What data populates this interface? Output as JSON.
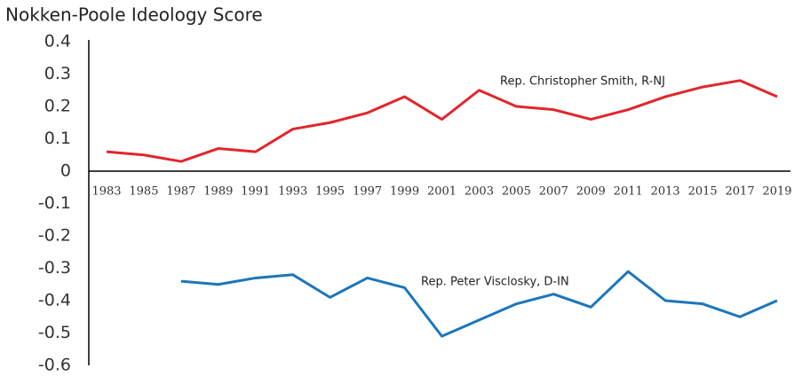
{
  "chart_data": {
    "type": "line",
    "title": "Nokken-Poole Ideology Score",
    "x": [
      1983,
      1985,
      1987,
      1989,
      1991,
      1993,
      1995,
      1997,
      1999,
      2001,
      2003,
      2005,
      2007,
      2009,
      2011,
      2013,
      2015,
      2017,
      2019
    ],
    "xlim": [
      1983,
      2019
    ],
    "ylim": [
      -0.6,
      0.4
    ],
    "yticks": [
      0.4,
      0.3,
      0.2,
      0.1,
      0,
      -0.1,
      -0.2,
      -0.3,
      -0.4,
      -0.5,
      -0.6
    ],
    "series": [
      {
        "name": "Rep. Christopher Smith, R-NJ",
        "color": "#e1262c",
        "values": [
          0.06,
          0.05,
          0.03,
          0.07,
          0.06,
          0.13,
          0.15,
          0.18,
          0.23,
          0.16,
          0.25,
          0.2,
          0.19,
          0.16,
          0.19,
          0.23,
          0.26,
          0.28,
          0.23
        ]
      },
      {
        "name": "Rep. Peter Visclosky, D-IN",
        "color": "#1b76bb",
        "values": [
          null,
          null,
          -0.34,
          -0.35,
          -0.33,
          -0.32,
          -0.39,
          -0.33,
          -0.36,
          -0.51,
          -0.46,
          -0.41,
          -0.38,
          -0.42,
          -0.31,
          -0.4,
          -0.41,
          -0.45,
          -0.4
        ]
      }
    ]
  }
}
